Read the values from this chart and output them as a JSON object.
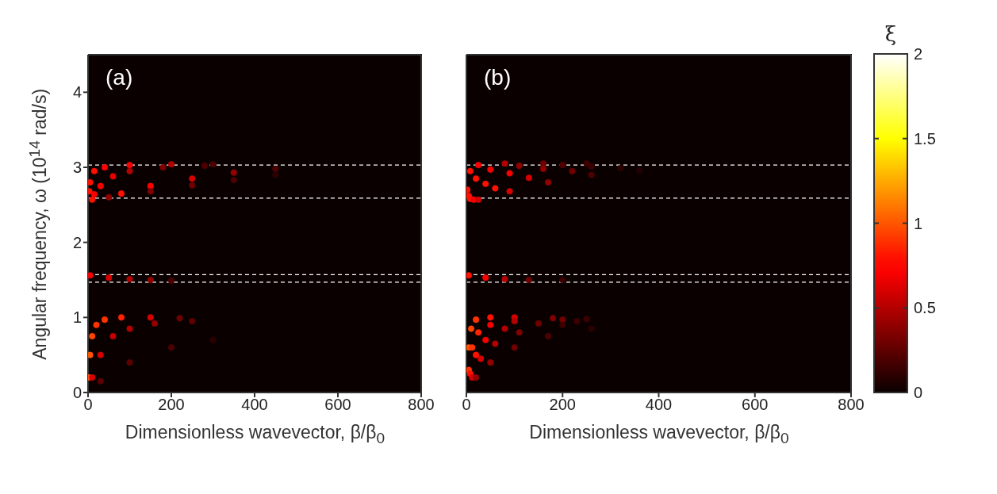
{
  "chart_data": [
    {
      "type": "scatter",
      "xlabel": "Dimensionless wavevector, β/β$_{0}$",
      "ylabel": "Angular frequency,  ω (10$^{14}$ rad/s)",
      "annotations": [
        "(a)"
      ],
      "xlim": [
        0,
        800
      ],
      "xticks": [
        0,
        200,
        400,
        600,
        800
      ],
      "ylim": [
        0,
        4.5
      ],
      "yticks": [
        0,
        1,
        2,
        3,
        4
      ],
      "marker": "circle",
      "ref_lines": [
        {
          "axis": "y",
          "value": 3.03,
          "color": "#ffffff",
          "line_style": "dashed"
        },
        {
          "axis": "y",
          "value": 2.59,
          "color": "#ffffff",
          "line_style": "dashed"
        },
        {
          "axis": "y",
          "value": 1.57,
          "color": "#ffffff",
          "line_style": "dashed"
        },
        {
          "axis": "y",
          "value": 1.47,
          "color": "#ffffff",
          "line_style": "dashed"
        }
      ],
      "series": [
        {
          "x": [
            2,
            5,
            10,
            20,
            40,
            80,
            150,
            220
          ],
          "values": [
            0.2,
            0.5,
            0.75,
            0.9,
            0.97,
            1.0,
            1.0,
            0.99
          ],
          "colors": [
            "#ff5500",
            "#ff5500",
            "#ff4400",
            "#ff3300",
            "#ff3300",
            "#ff2200",
            "#d60000",
            "#700000"
          ]
        },
        {
          "x": [
            10,
            30,
            60,
            100,
            160,
            250
          ],
          "values": [
            0.2,
            0.5,
            0.75,
            0.85,
            0.92,
            0.95
          ],
          "colors": [
            "#d60000",
            "#d60000",
            "#c50000",
            "#b40000",
            "#920000",
            "#5f0000"
          ]
        },
        {
          "x": [
            30,
            100,
            200,
            300
          ],
          "values": [
            0.15,
            0.4,
            0.6,
            0.7
          ],
          "colors": [
            "#5f0000",
            "#5f0000",
            "#4e0000",
            "#2c0000"
          ]
        },
        {
          "x": [
            5,
            50,
            100,
            150,
            200
          ],
          "values": [
            1.56,
            1.53,
            1.51,
            1.5,
            1.49
          ],
          "colors": [
            "#f80000",
            "#d60000",
            "#b40000",
            "#920000",
            "#4e0000"
          ]
        },
        {
          "x": [
            3,
            5,
            15,
            40,
            100,
            200,
            300
          ],
          "values": [
            2.68,
            2.8,
            2.95,
            3.0,
            3.03,
            3.04,
            3.04
          ],
          "colors": [
            "#ff1100",
            "#ff1100",
            "#ff1100",
            "#ff0000",
            "#f80000",
            "#b40000",
            "#4e0000"
          ]
        },
        {
          "x": [
            15,
            30,
            60,
            100,
            180,
            280
          ],
          "values": [
            2.64,
            2.75,
            2.88,
            2.95,
            3.0,
            3.02
          ],
          "colors": [
            "#f80000",
            "#f80000",
            "#e70000",
            "#b40000",
            "#810000",
            "#4e0000"
          ]
        },
        {
          "x": [
            10,
            80,
            150,
            250,
            350,
            450
          ],
          "values": [
            2.57,
            2.65,
            2.75,
            2.85,
            2.93,
            2.98
          ],
          "colors": [
            "#ff1100",
            "#ff1100",
            "#ff0000",
            "#d60000",
            "#920000",
            "#4e0000"
          ]
        },
        {
          "x": [
            50,
            150,
            250,
            350,
            450
          ],
          "values": [
            2.6,
            2.68,
            2.76,
            2.83,
            2.9
          ],
          "colors": [
            "#920000",
            "#810000",
            "#700000",
            "#4e0000",
            "#2c0000"
          ]
        }
      ]
    },
    {
      "type": "scatter",
      "xlabel": "Dimensionless wavevector, β/β$_{0}$",
      "annotations": [
        "(b)"
      ],
      "xlim": [
        0,
        800
      ],
      "xticks": [
        0,
        200,
        400,
        600,
        800
      ],
      "ylim": [
        0,
        4.5
      ],
      "yticks": [
        0,
        1,
        2,
        3,
        4
      ],
      "tick_labels": "x",
      "marker": "circle",
      "clabel": "ξ",
      "clim": [
        0,
        2
      ],
      "cticks": [
        0,
        0.5,
        1,
        1.5,
        2
      ],
      "ref_lines": [
        {
          "axis": "y",
          "value": 3.03,
          "color": "#ffffff",
          "line_style": "dashed"
        },
        {
          "axis": "y",
          "value": 2.59,
          "color": "#ffffff",
          "line_style": "dashed"
        },
        {
          "axis": "y",
          "value": 1.57,
          "color": "#ffffff",
          "line_style": "dashed"
        },
        {
          "axis": "y",
          "value": 1.47,
          "color": "#ffffff",
          "line_style": "dashed"
        }
      ],
      "series": [
        {
          "x": [
            5,
            10,
            20,
            50,
            100,
            180,
            250
          ],
          "values": [
            0.6,
            0.85,
            0.97,
            1.0,
            1.0,
            0.99,
            0.98
          ],
          "cvalues": [
            1,
            0.95,
            0.9,
            0.8,
            0.6,
            0.35,
            0.15
          ],
          "colors": [
            "#ff5500",
            "#ff4400",
            "#ff3300",
            "#ff1100",
            "#d60000",
            "#810000",
            "#3d0000"
          ]
        },
        {
          "x": [
            5,
            12,
            25,
            50,
            100,
            200
          ],
          "values": [
            0.3,
            0.6,
            0.8,
            0.9,
            0.95,
            0.97
          ],
          "cvalues": [
            0.9,
            0.9,
            0.85,
            0.7,
            0.5,
            0.3
          ],
          "colors": [
            "#ff3300",
            "#ff3300",
            "#ff2200",
            "#f80000",
            "#b40000",
            "#700000"
          ]
        },
        {
          "x": [
            8,
            20,
            40,
            80,
            150,
            230
          ],
          "values": [
            0.25,
            0.5,
            0.7,
            0.85,
            0.92,
            0.95
          ],
          "cvalues": [
            0.8,
            0.8,
            0.7,
            0.5,
            0.3,
            0.15
          ],
          "colors": [
            "#ff1100",
            "#ff1100",
            "#f80000",
            "#b40000",
            "#700000",
            "#3d0000"
          ]
        },
        {
          "x": [
            12,
            30,
            60,
            110,
            200
          ],
          "values": [
            0.2,
            0.45,
            0.65,
            0.8,
            0.9
          ],
          "cvalues": [
            0.6,
            0.6,
            0.5,
            0.35,
            0.15
          ],
          "colors": [
            "#d60000",
            "#d60000",
            "#b40000",
            "#810000",
            "#3d0000"
          ]
        },
        {
          "x": [
            20,
            50,
            100,
            170,
            260
          ],
          "values": [
            0.2,
            0.4,
            0.6,
            0.75,
            0.85
          ],
          "cvalues": [
            0.4,
            0.4,
            0.3,
            0.2,
            0.1
          ],
          "colors": [
            "#920000",
            "#920000",
            "#700000",
            "#4e0000",
            "#2c0000"
          ]
        },
        {
          "x": [
            5,
            40,
            80,
            130,
            200
          ],
          "values": [
            1.56,
            1.53,
            1.51,
            1.5,
            1.5
          ],
          "cvalues": [
            0.8,
            0.7,
            0.5,
            0.3,
            0.15
          ],
          "colors": [
            "#ff1100",
            "#f80000",
            "#b40000",
            "#700000",
            "#3d0000"
          ]
        },
        {
          "x": [
            2,
            8,
            25,
            80,
            160,
            250
          ],
          "values": [
            2.7,
            2.95,
            3.03,
            3.05,
            3.05,
            3.05
          ],
          "cvalues": [
            0.8,
            0.8,
            0.7,
            0.5,
            0.3,
            0.15
          ],
          "colors": [
            "#ff1100",
            "#ff1100",
            "#f80000",
            "#b40000",
            "#700000",
            "#3d0000"
          ]
        },
        {
          "x": [
            5,
            20,
            50,
            110,
            200
          ],
          "values": [
            2.62,
            2.85,
            2.97,
            3.02,
            3.03
          ],
          "cvalues": [
            0.8,
            0.8,
            0.7,
            0.4,
            0.2
          ],
          "colors": [
            "#ff1100",
            "#ff1100",
            "#f80000",
            "#920000",
            "#4e0000"
          ]
        },
        {
          "x": [
            8,
            40,
            90,
            160,
            260
          ],
          "values": [
            2.58,
            2.78,
            2.92,
            2.98,
            3.01
          ],
          "cvalues": [
            0.8,
            0.8,
            0.7,
            0.4,
            0.15
          ],
          "colors": [
            "#ff1100",
            "#ff1100",
            "#f80000",
            "#920000",
            "#3d0000"
          ]
        },
        {
          "x": [
            15,
            60,
            130,
            220,
            320
          ],
          "values": [
            2.57,
            2.72,
            2.86,
            2.95,
            2.99
          ],
          "cvalues": [
            0.7,
            0.8,
            0.6,
            0.3,
            0.1
          ],
          "colors": [
            "#f80000",
            "#ff1100",
            "#d60000",
            "#700000",
            "#2c0000"
          ]
        },
        {
          "x": [
            25,
            90,
            170,
            260,
            360
          ],
          "values": [
            2.57,
            2.68,
            2.8,
            2.9,
            2.96
          ],
          "cvalues": [
            0.6,
            0.6,
            0.4,
            0.2,
            0.08
          ],
          "colors": [
            "#d60000",
            "#d60000",
            "#920000",
            "#4e0000",
            "#250000"
          ]
        }
      ]
    }
  ]
}
